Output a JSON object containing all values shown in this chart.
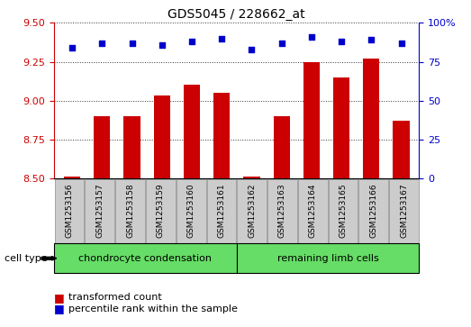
{
  "title": "GDS5045 / 228662_at",
  "samples": [
    "GSM1253156",
    "GSM1253157",
    "GSM1253158",
    "GSM1253159",
    "GSM1253160",
    "GSM1253161",
    "GSM1253162",
    "GSM1253163",
    "GSM1253164",
    "GSM1253165",
    "GSM1253166",
    "GSM1253167"
  ],
  "transformed_count": [
    8.51,
    8.9,
    8.9,
    9.03,
    9.1,
    9.05,
    8.51,
    8.9,
    9.25,
    9.15,
    9.27,
    8.87
  ],
  "percentile_rank": [
    84,
    87,
    87,
    86,
    88,
    90,
    83,
    87,
    91,
    88,
    89,
    87
  ],
  "ylim_left": [
    8.5,
    9.5
  ],
  "ylim_right": [
    0,
    100
  ],
  "yticks_left": [
    8.5,
    8.75,
    9.0,
    9.25,
    9.5
  ],
  "yticks_right": [
    0,
    25,
    50,
    75,
    100
  ],
  "bar_color": "#cc0000",
  "dot_color": "#0000cc",
  "bar_width": 0.55,
  "group1_label": "chondrocyte condensation",
  "group2_label": "remaining limb cells",
  "group1_count": 6,
  "group2_count": 6,
  "cell_type_label": "cell type",
  "legend_items": [
    "transformed count",
    "percentile rank within the sample"
  ],
  "tick_bg_color": "#cccccc",
  "green_color": "#66dd66",
  "grid_color": "#333333",
  "left_axis_color": "#cc0000",
  "right_axis_color": "#0000cc"
}
